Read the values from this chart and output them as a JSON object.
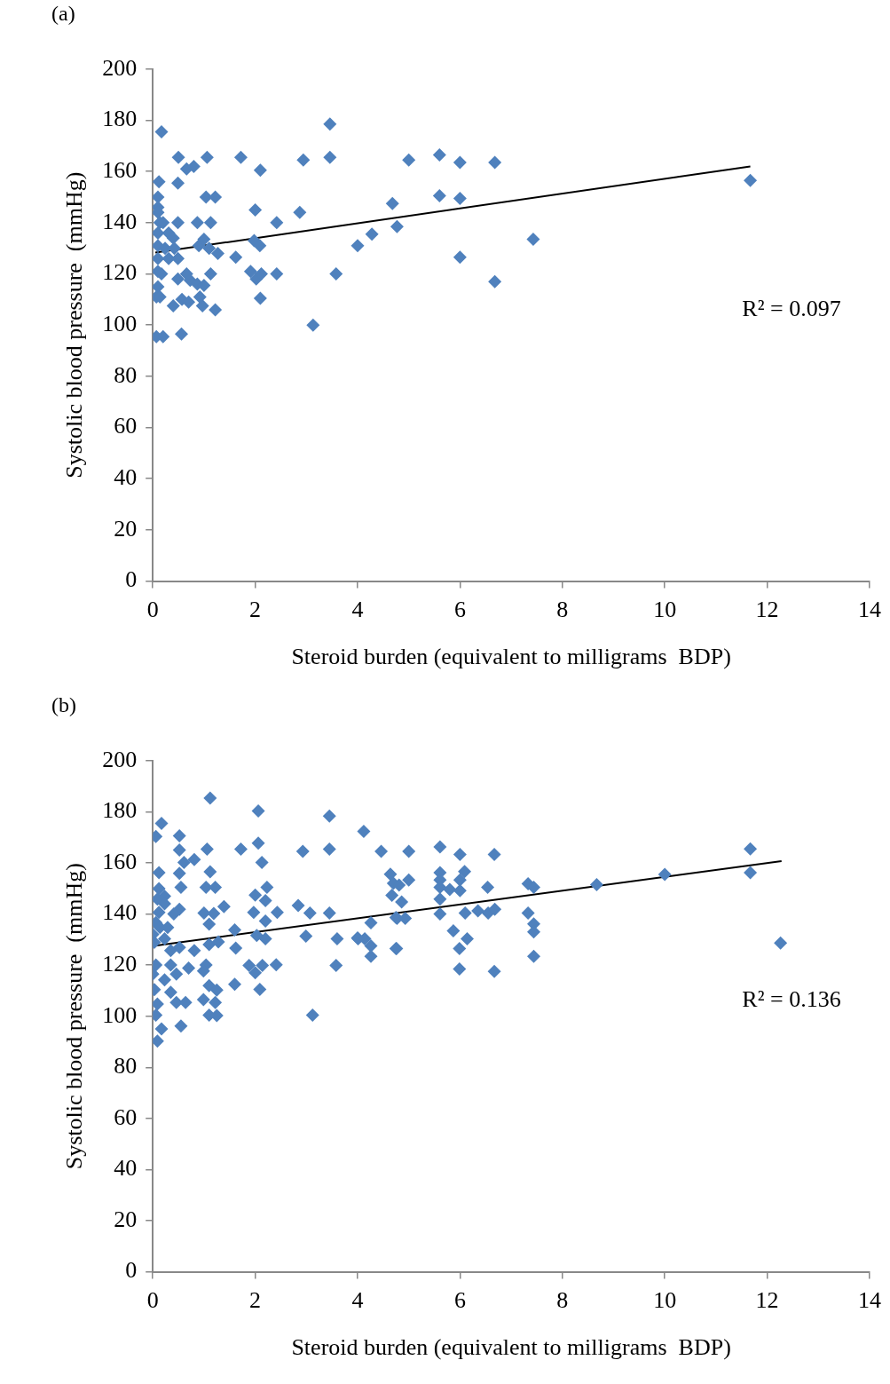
{
  "chart_data": [
    {
      "type": "scatter",
      "title": "(a)",
      "xlabel": "Steroid burden (equivalent to milligrams  BDP)",
      "ylabel": "Systolic blood pressure  (mmHg)",
      "xlim": [
        0,
        14
      ],
      "xticks": [
        0,
        2,
        4,
        6,
        8,
        10,
        12,
        14
      ],
      "ylim": [
        0,
        200
      ],
      "yticks": [
        0,
        20,
        40,
        60,
        80,
        100,
        120,
        140,
        160,
        180,
        200
      ],
      "grid": false,
      "legend": false,
      "annotations": [
        "R² = 0.097"
      ],
      "series": [
        {
          "type": "scatter",
          "color": "#4f81bd",
          "marker": "diamond",
          "x": [
            0.17,
            0.12,
            0.1,
            0.1,
            0.1,
            0.14,
            0.2,
            0.1,
            0.1,
            0.24,
            0.1,
            0.1,
            0.17,
            0.1,
            0.07,
            0.14,
            0.07,
            0.2,
            0.31,
            0.49,
            0.4,
            0.42,
            0.31,
            0.49,
            0.5,
            0.49,
            0.66,
            0.8,
            0.66,
            0.49,
            0.4,
            0.57,
            0.7,
            0.56,
            0.73,
            0.87,
            0.9,
            0.87,
            1.06,
            1.04,
            1.22,
            1.13,
            1.0,
            1.1,
            1.27,
            1.13,
            1.0,
            0.97,
            1.22,
            0.92,
            1.62,
            1.72,
            2.0,
            1.98,
            2.09,
            2.1,
            1.91,
            2.02,
            2.12,
            2.1,
            2.42,
            2.42,
            2.87,
            2.94,
            3.13,
            3.46,
            3.46,
            3.58,
            4.0,
            4.28,
            4.68,
            4.77,
            5.0,
            5.6,
            5.6,
            6.0,
            6.0,
            6.0,
            6.68,
            6.68,
            7.43,
            11.67
          ],
          "values": [
            175.5,
            156,
            150,
            146,
            144,
            140,
            140,
            136,
            131,
            130,
            126,
            121,
            120,
            115,
            111,
            111,
            95.5,
            95.5,
            136,
            140,
            134,
            130,
            126,
            126,
            165.5,
            155.5,
            161,
            162,
            120,
            118,
            107.5,
            110,
            109,
            96.5,
            117.5,
            116,
            131,
            140,
            165.5,
            150,
            150,
            140,
            133.5,
            130,
            128,
            120,
            115.5,
            107.5,
            106,
            111,
            126.5,
            165.5,
            145,
            133,
            131,
            160.5,
            121,
            118,
            120,
            110.5,
            140,
            120,
            144,
            164.5,
            100,
            178.5,
            165.5,
            120,
            131,
            135.5,
            147.5,
            138.5,
            164.5,
            166.5,
            150.5,
            163.5,
            149.5,
            126.5,
            163.5,
            117,
            133.5,
            156.5
          ]
        },
        {
          "type": "line",
          "color": "#000000",
          "marker": "none",
          "line_style": "solid",
          "x": [
            0.05,
            11.67
          ],
          "values": [
            128.3,
            162
          ]
        }
      ]
    },
    {
      "type": "scatter",
      "title": "(b)",
      "xlabel": "Steroid burden (equivalent to milligrams  BDP)",
      "ylabel": "Systolic blood pressure  (mmHg)",
      "xlim": [
        0,
        14
      ],
      "xticks": [
        0,
        2,
        4,
        6,
        8,
        10,
        12,
        14
      ],
      "ylim": [
        0,
        200
      ],
      "yticks": [
        0,
        20,
        40,
        60,
        80,
        100,
        120,
        140,
        160,
        180,
        200
      ],
      "grid": false,
      "legend": false,
      "annotations": [
        "R² = 0.136"
      ],
      "series": [
        {
          "type": "scatter",
          "color": "#4f81bd",
          "marker": "diamond",
          "x": [
            1.12,
            2.06,
            0.17,
            0.06,
            0.52,
            0.52,
            1.06,
            1.72,
            2.06,
            2.13,
            3.45,
            2.93,
            3.45,
            4.12,
            4.46,
            0.81,
            0.61,
            0.12,
            0.52,
            1.12,
            0.12,
            0.55,
            1.04,
            1.22,
            0.09,
            0.23,
            2.23,
            2.0,
            2.2,
            2.84,
            3.07,
            3.45,
            2.43,
            1.97,
            1.39,
            1.0,
            0.12,
            0.52,
            0.41,
            1.19,
            2.2,
            0.06,
            1.1,
            1.6,
            2.03,
            2.2,
            2.99,
            3.6,
            4.0,
            4.26,
            4.26,
            4.64,
            4.7,
            4.67,
            4.75,
            4.75,
            4.26,
            0.03,
            0.23,
            0.52,
            0.81,
            1.1,
            1.28,
            1.62,
            1.88,
            2.0,
            2.14,
            2.41,
            3.58,
            0.06,
            0.35,
            0.7,
            1.04,
            0.0,
            0.23,
            0.46,
            0.99,
            1.1,
            1.25,
            0.03,
            0.35,
            0.46,
            0.64,
            0.99,
            1.22,
            1.6,
            2.09,
            0.09,
            0.06,
            1.1,
            1.25,
            3.12,
            0.17,
            0.55,
            0.09,
            0.23,
            0.14,
            0.29,
            0.0,
            0.35,
            5.0,
            5.61,
            6.0,
            6.67,
            5.0,
            5.61,
            6.09,
            4.81,
            5.61,
            6.0,
            5.61,
            5.8,
            6.0,
            7.33,
            7.44,
            8.67,
            6.54,
            4.86,
            5.61,
            5.61,
            6.1,
            6.35,
            6.55,
            6.68,
            7.33,
            4.77,
            4.93,
            7.44,
            7.44,
            4.01,
            4.14,
            5.87,
            6.14,
            4.76,
            5.99,
            7.44,
            5.99,
            6.67,
            10.0,
            11.67,
            11.67,
            12.26
          ],
          "values": [
            185.3,
            180.3,
            175.4,
            170.3,
            170.6,
            165,
            165.4,
            165.4,
            167.7,
            160.2,
            178.3,
            164.5,
            165.4,
            172.3,
            164.5,
            161.3,
            160.2,
            156.2,
            155.9,
            156.5,
            149.9,
            150.4,
            150.4,
            150.4,
            145.8,
            147,
            150.4,
            147.4,
            145.2,
            143.3,
            140.4,
            140.4,
            140.6,
            140.6,
            142.9,
            140.4,
            140.6,
            141.8,
            140,
            140.2,
            137.2,
            136.6,
            136,
            133.8,
            131.6,
            130.3,
            131.3,
            130.3,
            130.6,
            127.5,
            123.4,
            155.6,
            152,
            147.3,
            138.6,
            126.5,
            136.5,
            128.9,
            130.3,
            126.9,
            125.7,
            128,
            129.1,
            126.6,
            119.9,
            117,
            119.9,
            120.1,
            119.9,
            120,
            120,
            118.8,
            120,
            116.5,
            114.2,
            116.5,
            117.7,
            112,
            110.2,
            110.4,
            109.4,
            105.4,
            105.4,
            106.5,
            105.4,
            112.5,
            110.5,
            104.8,
            100.4,
            100.4,
            100.2,
            100.4,
            95,
            96.2,
            90.3,
            144,
            134.7,
            134.7,
            132,
            125.7,
            164.5,
            166.2,
            163.3,
            163.3,
            153.3,
            156.2,
            156.6,
            151.3,
            153.3,
            153.3,
            150.4,
            149.6,
            149.1,
            151.8,
            150.4,
            151.5,
            150.4,
            144.7,
            145.8,
            140,
            140.4,
            141.2,
            140.4,
            141.8,
            140.4,
            138.3,
            138.3,
            136.1,
            133,
            130.3,
            130.3,
            133.4,
            130.3,
            126.5,
            126.5,
            123.4,
            118.5,
            117.5,
            155.5,
            165.5,
            156.2,
            128.6
          ]
        },
        {
          "type": "line",
          "color": "#000000",
          "marker": "none",
          "line_style": "solid",
          "x": [
            0.05,
            12.28
          ],
          "values": [
            127.6,
            160.7
          ]
        }
      ]
    }
  ]
}
